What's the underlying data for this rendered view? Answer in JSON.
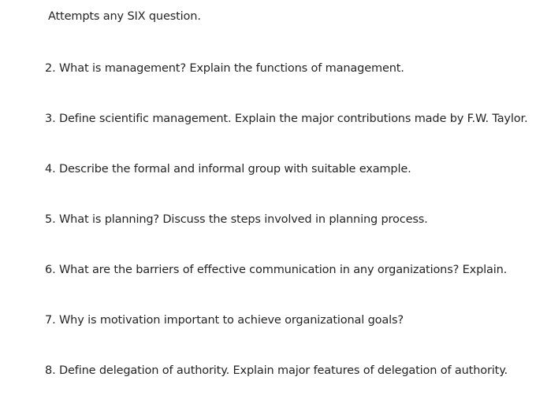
{
  "instruction": "Attempts any SIX question.",
  "questions": [
    "2. What is management? Explain the functions of management.",
    "3. Define scientific management. Explain the major contributions made by F.W. Taylor.",
    "4. Describe the formal and informal group with suitable example.",
    "5. What is planning? Discuss the steps involved in planning process.",
    "6. What are the barriers of effective communication in any organizations? Explain.",
    "7. Why is motivation important to achieve organizational goals?",
    "8. Define delegation of authority. Explain major features of delegation of authority."
  ]
}
